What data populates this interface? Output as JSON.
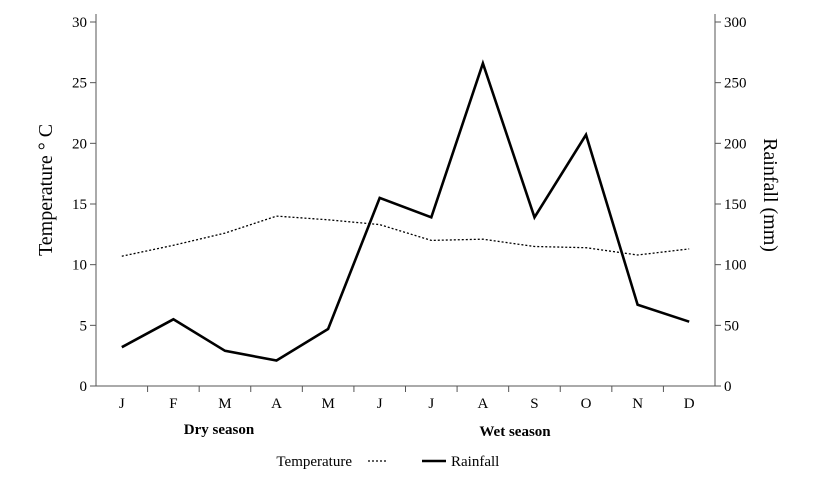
{
  "chart_data": {
    "type": "line",
    "categories": [
      "J",
      "F",
      "M",
      "A",
      "M",
      "J",
      "J",
      "A",
      "S",
      "O",
      "N",
      "D"
    ],
    "series": [
      {
        "name": "Temperature",
        "axis": "left",
        "style": "dotted",
        "values": [
          10.7,
          11.6,
          12.6,
          14.0,
          13.7,
          13.3,
          12.0,
          12.1,
          11.5,
          11.4,
          10.8,
          11.3
        ]
      },
      {
        "name": "Rainfall",
        "axis": "right",
        "style": "solid",
        "values": [
          32,
          55,
          29,
          21,
          47,
          155,
          139,
          266,
          139,
          207,
          67,
          53
        ]
      }
    ],
    "ylabel": "Temperature ° C",
    "y2label": "Rainfall (mm)",
    "ylim": [
      0,
      30
    ],
    "y2lim": [
      0,
      300
    ],
    "yticks": [
      0,
      5,
      10,
      15,
      20,
      25,
      30
    ],
    "y2ticks": [
      0,
      50,
      100,
      150,
      200,
      250,
      300
    ],
    "annotations": [
      "Dry season",
      "Wet season"
    ],
    "grid": false,
    "legend": "bottom-center",
    "colors": {
      "lines": "#000000",
      "axes": "#555555"
    }
  }
}
